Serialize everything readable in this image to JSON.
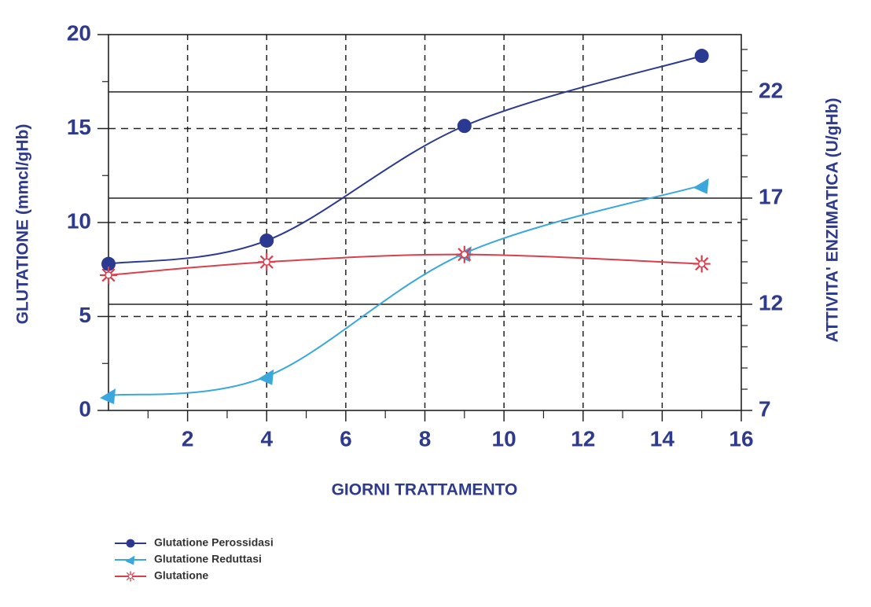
{
  "chart_data": {
    "type": "line",
    "xlabel": "GIORNI TRATTAMENTO",
    "ylabel": "GLUTATIONE (mmcl/gHb)",
    "y2label": "ATTIVITA' ENZIMATICA (U/gHb)",
    "xlim": [
      0,
      16
    ],
    "xticks": [
      2,
      4,
      6,
      8,
      10,
      12,
      14,
      16
    ],
    "ylim": [
      0,
      20
    ],
    "yticks": [
      0,
      5,
      10,
      15,
      20
    ],
    "y2lim": [
      7,
      24.7
    ],
    "y2ticks": [
      7,
      12,
      17,
      22
    ],
    "grid": true,
    "series": [
      {
        "name": "Glutatione Perossidasi",
        "color": "#2b3990",
        "marker": "circle",
        "axis": "y2",
        "x": [
          0,
          4,
          9,
          15
        ],
        "values": [
          13.9,
          15.0,
          20.4,
          23.7
        ]
      },
      {
        "name": "Glutatione Reduttasi",
        "color": "#3aa7dd",
        "marker": "triangle",
        "axis": "y2",
        "x": [
          0,
          4,
          9,
          15
        ],
        "values": [
          7.7,
          8.6,
          14.4,
          17.6
        ]
      },
      {
        "name": "Glutatione",
        "color": "#d9404e",
        "marker": "asterisk",
        "x": [
          0,
          4,
          9,
          15
        ],
        "values": [
          7.2,
          7.9,
          8.3,
          7.8
        ]
      }
    ]
  }
}
